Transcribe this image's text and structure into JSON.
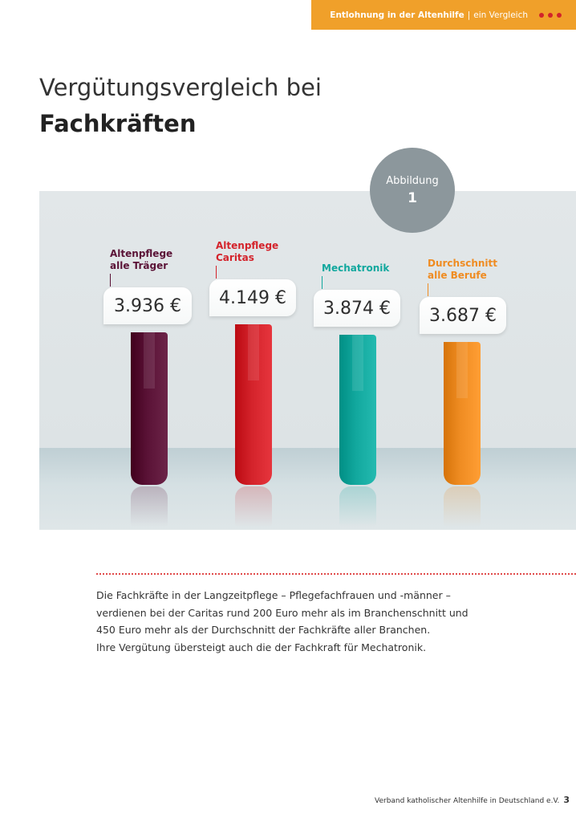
{
  "header": {
    "section": "Entlohnung in der Altenhilfe",
    "separator": "|",
    "subsection": "ein Vergleich",
    "dot_color": "#d2232a",
    "tab_color": "#f0a02a"
  },
  "title": {
    "line1": "Vergütungsvergleich bei",
    "line2": "Fachkräften"
  },
  "badge": {
    "label": "Abbildung",
    "number": "1"
  },
  "chart_data": {
    "type": "bar",
    "unit": "€",
    "categories": [
      "Altenpflege alle Träger",
      "Altenpflege Caritas",
      "Mechatronik",
      "Durchschnitt alle Berufe"
    ],
    "label_lines": [
      [
        "Altenpflege",
        "alle Träger"
      ],
      [
        "Altenpflege",
        "Caritas"
      ],
      [
        "Mechatronik"
      ],
      [
        "Durchschnitt",
        "alle Berufe"
      ]
    ],
    "values": [
      3936,
      4149,
      3874,
      3687
    ],
    "value_labels": [
      "3.936 €",
      "4.149 €",
      "3.874 €",
      "3.687 €"
    ],
    "colors": [
      "#5a1236",
      "#d4232b",
      "#12a89e",
      "#ef8c22"
    ],
    "label_colors": [
      "#5a1236",
      "#d4232b",
      "#12a89e",
      "#ef8c22"
    ]
  },
  "body": {
    "lines": [
      "Die Fachkräfte in der Langzeitpflege – Pflegefachfrauen und -männer –",
      "verdienen bei der Caritas rund 200 Euro mehr als im Branchenschnitt und",
      "450 Euro mehr als der Durchschnitt der Fachkräfte aller Branchen.",
      "Ihre Vergütung übersteigt auch die der Fachkraft für Mechatronik."
    ]
  },
  "footer": {
    "publisher": "Verband katholischer Altenhilfe in Deutschland e.V.",
    "page_number": "3"
  }
}
